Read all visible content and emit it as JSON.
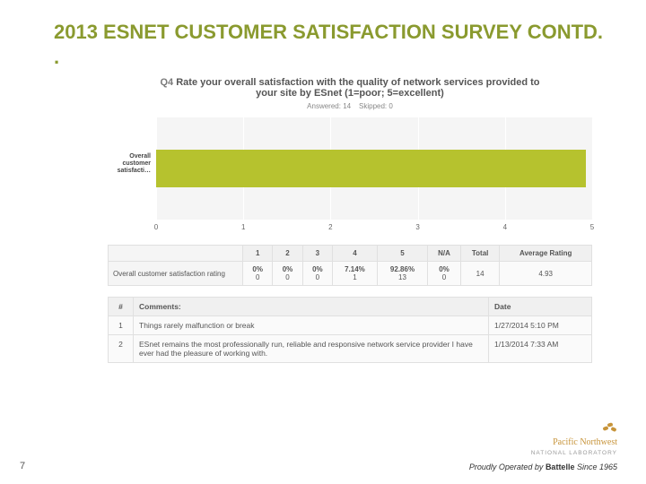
{
  "slide": {
    "title": "2013 ESNET CUSTOMER SATISFACTION SURVEY CONTD. .",
    "title_color": "#8a9a2f",
    "page_number": "7"
  },
  "question": {
    "label_prefix": "Q4",
    "label_prefix_color": "#7a7a7a",
    "text": "Rate your overall satisfaction with the quality of network services provided to your site by ESnet (1=poor; 5=excellent)",
    "text_color": "#555555",
    "answered_label": "Answered:",
    "answered": "14",
    "skipped_label": "Skipped:",
    "skipped": "0"
  },
  "chart": {
    "type": "bar-horizontal",
    "y_category_label": "Overall customer satisfacti…",
    "x_ticks": [
      "0",
      "1",
      "2",
      "3",
      "4",
      "5"
    ],
    "xlim": [
      0,
      5
    ],
    "value": 4.93,
    "bar_color": "#b6c22e",
    "plot_bg": "#f5f5f5",
    "gridline_color": "#ffffff"
  },
  "breakdown": {
    "row_label": "Overall customer satisfaction rating",
    "columns": [
      "1",
      "2",
      "3",
      "4",
      "5",
      "N/A",
      "Total",
      "Average Rating"
    ],
    "cells": [
      {
        "pct": "0%",
        "count": "0"
      },
      {
        "pct": "0%",
        "count": "0"
      },
      {
        "pct": "0%",
        "count": "0"
      },
      {
        "pct": "7.14%",
        "count": "1"
      },
      {
        "pct": "92.86%",
        "count": "13"
      },
      {
        "pct": "0%",
        "count": "0"
      }
    ],
    "total": "14",
    "avg": "4.93"
  },
  "comments": {
    "headers": {
      "num": "#",
      "comment": "Comments:",
      "date": "Date"
    },
    "rows": [
      {
        "num": "1",
        "text": "Things rarely malfunction or break",
        "date": "1/27/2014 5:10 PM"
      },
      {
        "num": "2",
        "text": "ESnet remains the most professionally run, reliable and responsive network service provider I have ever had the pleasure of working with.",
        "date": "1/13/2014 7:33 AM"
      }
    ]
  },
  "footer": {
    "org_name": "Pacific Northwest",
    "org_sub": "NATIONAL LABORATORY",
    "tagline_prefix": "Proudly Operated by ",
    "tagline_org": "Battelle",
    "tagline_suffix": " Since 1965"
  }
}
